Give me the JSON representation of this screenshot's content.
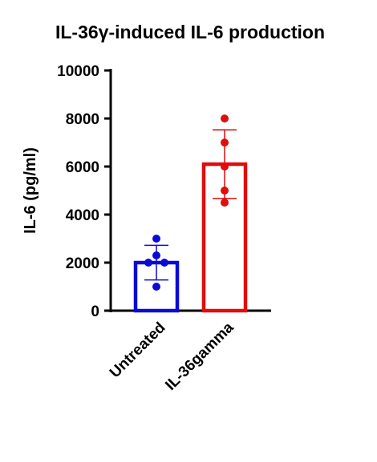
{
  "chart_data": {
    "type": "bar",
    "title": "IL-36γ-induced IL-6 production",
    "y_label": "IL-6 (pg/ml)",
    "categories": [
      "Untreated",
      "IL-36gamma"
    ],
    "values": [
      2000,
      6100
    ],
    "errors": [
      720,
      1430
    ],
    "points": [
      [
        3000,
        2300,
        2000,
        2000,
        1000
      ],
      [
        8000,
        7000,
        6000,
        5000,
        4500
      ]
    ],
    "colors": [
      "#0a0ad8",
      "#e00d0d"
    ],
    "ylim": [
      0,
      10000
    ],
    "yticks": [
      0,
      2000,
      4000,
      6000,
      8000,
      10000
    ],
    "grid": false
  }
}
